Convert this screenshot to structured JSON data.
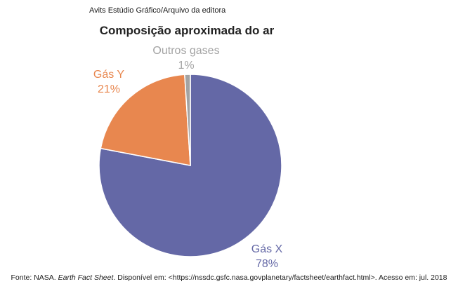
{
  "credit": "Avits Estúdio Gráfico/Arquivo da editora",
  "source": {
    "prefix": "Fonte: NASA.",
    "title": "Earth Fact Sheet",
    "suffix": ". Disponível em: <https://nssdc.gsfc.nasa.govplanetary/factsheet/earthfact.html>. Acesso em: jul. 2018"
  },
  "colors": {
    "gas_x": "#6468a6",
    "gas_y": "#e8874f",
    "outros": "#a3a3a3"
  },
  "chart_data": {
    "type": "pie",
    "title": "Composição aproximada do ar",
    "slices": [
      {
        "name": "Gás X",
        "value": 78,
        "label": "78%",
        "color": "#6468a6"
      },
      {
        "name": "Gás Y",
        "value": 21,
        "label": "21%",
        "color": "#e8874f"
      },
      {
        "name": "Outros gases",
        "value": 1,
        "label": "1%",
        "color": "#a3a3a3"
      }
    ]
  }
}
